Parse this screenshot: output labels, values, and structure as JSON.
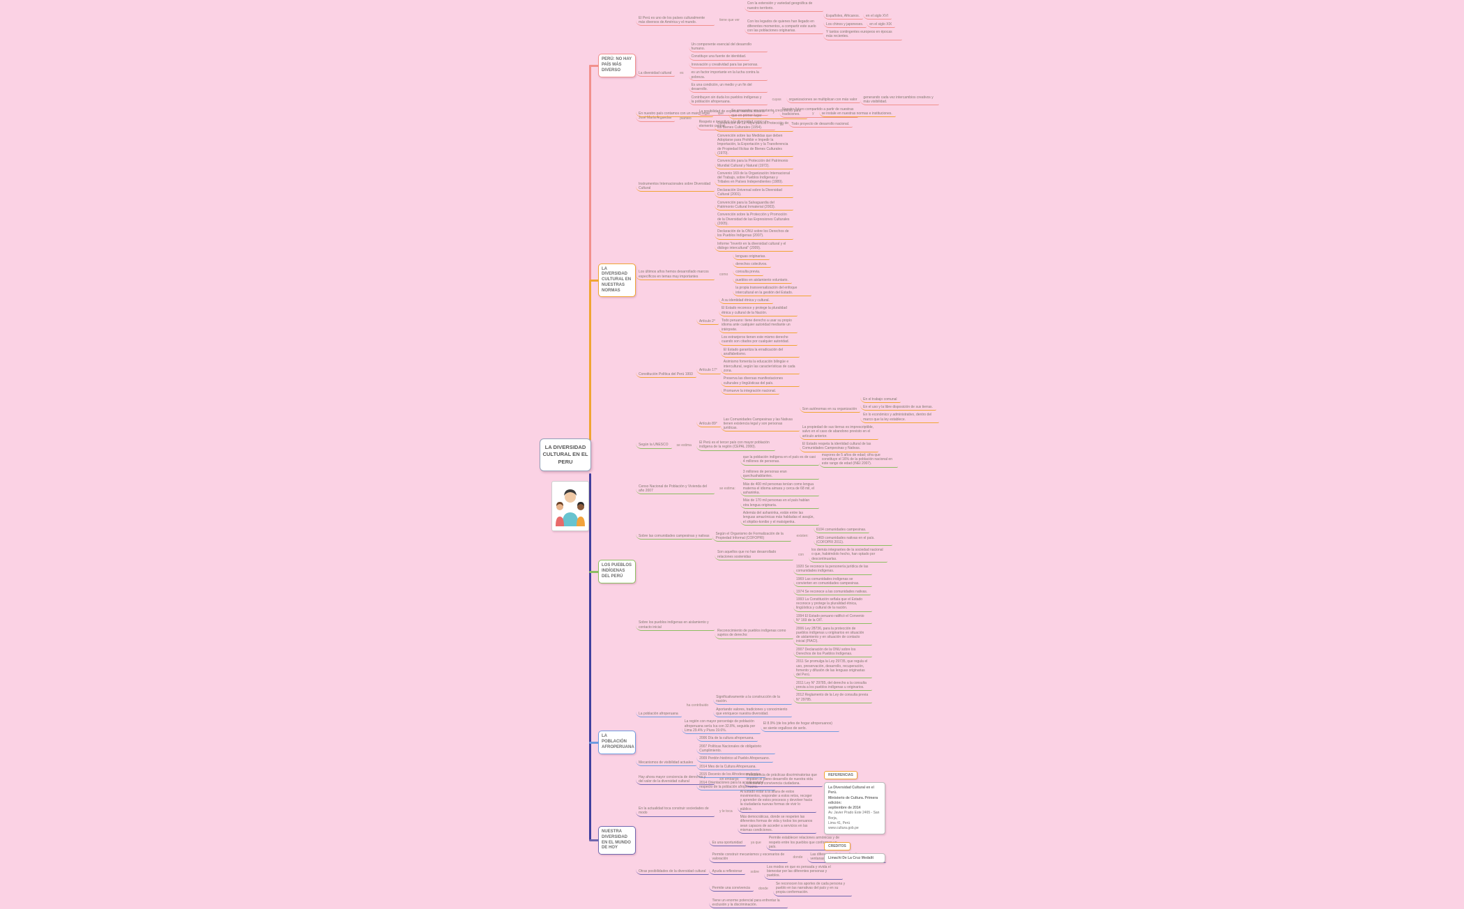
{
  "root": {
    "label": "LA DIVERSIDAD CULTURAL EN EL PERU"
  },
  "palette": {
    "background": "#FBD2E4",
    "salmon": "#F1908C",
    "orange": "#F0A532",
    "green": "#8CBE60",
    "blue": "#6E9BE0",
    "purple": "#6F66AE",
    "trunk_lower": "#3F3F9E"
  },
  "branches": [
    {
      "label": "PERÚ: NO HAY PAÍS MÁS DIVERSO",
      "color": "#F1908C",
      "children": [
        {
          "t": "El Perú es uno de los países culturalmente más diversos de América y el mundo.",
          "c": [
            {
              "t": "tiene que ver",
              "p": true,
              "c": [
                {
                  "t": "Con la extensión y variedad geográfica de nuestro territorio."
                },
                {
                  "t": "Con los legados de quienes han llegado en diferentes momentos, a compartir este suelo con las poblaciones originarias.",
                  "c": [
                    {
                      "t": "Españoles, Africanos.",
                      "c": [
                        {
                          "t": "en el siglo XVI"
                        }
                      ]
                    },
                    {
                      "t": "Los chinos y japoneses.",
                      "c": [
                        {
                          "t": "en el siglo XIX"
                        }
                      ]
                    },
                    {
                      "t": "Y tantos contingentes europeos en épocas más recientes."
                    }
                  ]
                }
              ]
            }
          ]
        },
        {
          "t": "La diversidad cultural",
          "c": [
            {
              "t": "es",
              "p": true,
              "c": [
                {
                  "t": "Un componente esencial del desarrollo humano."
                },
                {
                  "t": "Constituye una fuente de identidad."
                },
                {
                  "t": "Innovación y creatividad para las personas."
                },
                {
                  "t": "es un factor importante en la lucha contra la pobreza."
                },
                {
                  "t": "Es una condición, un medio y un fin del desarrollo."
                },
                {
                  "t": "Contribuyen sin duda los pueblos indígenas y la población afroperuana.",
                  "c": [
                    {
                      "t": "cuyas",
                      "p": true,
                      "c": [
                        {
                          "t": "organizaciones se multiplican con más valor",
                          "c": [
                            {
                              "t": "generando cada vez intercambios creativos y más visibilidad."
                            }
                          ]
                        }
                      ]
                    }
                  ]
                }
              ]
            }
          ]
        },
        {
          "t": "José María Arguedas",
          "c": [
            {
              "t": "planteó",
              "p": true,
              "c": [
                {
                  "t": "La posibilidad de expresar nuestra historia",
                  "c": [
                    {
                      "t": "y",
                      "p": true,
                      "c": [
                        {
                          "t": "Nuestro futuro compartido a partir de nuestras tradiciones."
                        }
                      ]
                    }
                  ]
                },
                {
                  "t": "Respeto e incentivo a la diversidad como un elemento central",
                  "c": [
                    {
                      "t": "de",
                      "p": true,
                      "c": [
                        {
                          "t": "Todo proyecto de desarrollo nacional."
                        }
                      ]
                    }
                  ]
                }
              ]
            }
          ]
        }
      ]
    },
    {
      "label": "LA DIVERSIDAD CULTURAL EN NUESTRAS NORMAS",
      "color": "#F0A532",
      "children": [
        {
          "t": "En nuestro país contamos con un marco legal",
          "c": [
            {
              "t": "que",
              "p": true,
              "c": [
                {
                  "t": "Se encuentra: en constante crecimiento para que en primer lugar",
                  "c": [
                    {
                      "t": "y",
                      "p": true,
                      "c": [
                        {
                          "t": "se instale en nuestras normas e instituciones."
                        }
                      ]
                    }
                  ]
                }
              ]
            }
          ]
        },
        {
          "t": "Instrumentos Internacionales sobre Diversidad Cultural",
          "c": [
            {
              "t": "Convención de La Haya para la Protección de los Bienes Culturales (1954)."
            },
            {
              "t": "Convención sobre las Medidas que deben Adoptarse para Prohibir e Impedir la Importación, la Exportación y la Transferencia de Propiedad Ilícitas de Bienes Culturales (1970)."
            },
            {
              "t": "Convención para la Protección del Patrimonio Mundial Cultural y Natural (1972)."
            },
            {
              "t": "Convenio 169 de la Organización Internacional del Trabajo, sobre Pueblos Indígenas y Tribales en Países Independientes (1989)."
            },
            {
              "t": "Declaración Universal sobre la Diversidad Cultural (2001)."
            },
            {
              "t": "Convención para la Salvaguardia del Patrimonio Cultural Inmaterial (2003)."
            },
            {
              "t": "Convención sobre la Protección y Promoción de la Diversidad de las Expresiones Culturales (2005)."
            },
            {
              "t": "Declaración de la ONU sobre los Derechos de los Pueblos Indígenas (2007)."
            },
            {
              "t": "Informe “Invertir en la diversidad cultural y el diálogo intercultural” (2009)."
            }
          ]
        },
        {
          "t": "Los últimos años hemos desarrollado marcos específicos en temas muy importantes",
          "c": [
            {
              "t": "como",
              "p": true,
              "c": [
                {
                  "t": "lenguas originarias."
                },
                {
                  "t": "derechos colectivos."
                },
                {
                  "t": "consulta previa."
                },
                {
                  "t": "pueblos en aislamiento voluntario."
                },
                {
                  "t": "la propia transversalización del enfoque intercultural en la gestión del Estado."
                }
              ]
            }
          ]
        },
        {
          "t": "Constitución Política del Perú 1993",
          "c": [
            {
              "t": "Artículo 2°",
              "c": [
                {
                  "t": "A su identidad étnica y cultural."
                },
                {
                  "t": "El Estado reconoce y protege la pluralidad étnica y cultural de la Nación."
                },
                {
                  "t": "Todo peruano: tiene derecho a usar su propio idioma ante cualquier autoridad mediante un intérprete."
                },
                {
                  "t": "Los extranjeros tienen este mismo derecho cuando son citados por cualquier autoridad."
                }
              ]
            },
            {
              "t": "Artículo 17°",
              "c": [
                {
                  "t": "El Estado garantiza la erradicación del analfabetismo."
                },
                {
                  "t": "Asimismo fomenta la educación bilingüe e intercultural, según las características de cada zona."
                },
                {
                  "t": "Preserva las diversas manifestaciones culturales y lingüísticas del país."
                },
                {
                  "t": "Promueve la integración nacional."
                }
              ]
            },
            {
              "t": "Artículo 89°",
              "c": [
                {
                  "t": "Las Comunidades Campesinas y las Nativas tienen existencia legal y son personas jurídicas.",
                  "c": [
                    {
                      "t": "Son autónomas en su organización",
                      "c": [
                        {
                          "t": "En el trabajo comunal"
                        },
                        {
                          "t": "En el uso y la libre disposición de sus tierras."
                        },
                        {
                          "t": "En lo económico y administrativo, dentro del marco que la ley establece."
                        }
                      ]
                    },
                    {
                      "t": "La propiedad de sus tierras es imprescriptible, salvo en el caso de abandono previsto en el artículo anterior."
                    },
                    {
                      "t": "El Estado respeta la identidad cultural de las Comunidades Campesinas y Nativas."
                    }
                  ]
                }
              ]
            }
          ]
        }
      ]
    },
    {
      "label": "LOS PUEBLOS INDÍGENAS DEL PERÚ",
      "color": "#8CBE60",
      "children": [
        {
          "t": "Según la UNESCO",
          "c": [
            {
              "t": "se estima",
              "p": true,
              "c": [
                {
                  "t": "El Perú es el tercer país con mayor población indígena de la región (CEPAL 2000)."
                }
              ]
            }
          ]
        },
        {
          "t": "Censo Nacional de Población y Vivienda del año 2007",
          "c": [
            {
              "t": "se estima:",
              "p": true,
              "c": [
                {
                  "t": "que la población indígena en el país es de casi 4 millones de personas.",
                  "c": [
                    {
                      "t": "mayores de 5 años de edad; cifra que constituye el 16% de la población nacional en este rango de edad (INEI 2007)."
                    }
                  ]
                },
                {
                  "t": "3 millones de personas eran quechuahablantes."
                },
                {
                  "t": "Más de 400 mil personas tenían como lengua materna el idioma aimara y cerca de 68 mil, el ashaninka."
                },
                {
                  "t": "Más de 170 mil personas en el país hablan otra lengua originaria."
                },
                {
                  "t": "Además del ashaninka, están entre las lenguas amazónicas más habladas el awajún, el shipibo-konibo y el matsigenka."
                }
              ]
            }
          ]
        },
        {
          "t": "Sobre las comunidades campesinas y nativas",
          "c": [
            {
              "t": "Según el Organismo de Formalización de la Propiedad Informal (COFOPRI)",
              "c": [
                {
                  "t": "existen:",
                  "p": true,
                  "c": [
                    {
                      "t": "6104 comunidades campesinas."
                    },
                    {
                      "t": "1469 comunidades nativas en el país. (COFOPRI 2011)."
                    }
                  ]
                }
              ]
            }
          ]
        },
        {
          "t": "Sobre los pueblos indígenas en aislamiento y contacto inicial",
          "c": [
            {
              "t": "Son aquellos que no han desarrollado relaciones sostenidas",
              "c": [
                {
                  "t": "con",
                  "p": true,
                  "c": [
                    {
                      "t": "los demás integrantes de la sociedad nacional o que, habiéndolo hecho, han optado por descontinuarlas."
                    }
                  ]
                }
              ]
            },
            {
              "t": "Reconocimiento de pueblos indígenas como sujetos de derecho:",
              "c": [
                {
                  "t": "1920 Se reconoce la personería jurídica de las comunidades indígenas."
                },
                {
                  "t": "1969 Las comunidades indígenas se convierten en comunidades campesinas."
                },
                {
                  "t": "1974 Se reconoce a las comunidades nativas."
                },
                {
                  "t": "1993 La Constitución señala que el Estado reconoce y protege la pluralidad étnica, lingüística y cultural de la nación."
                },
                {
                  "t": "1994 El Estado peruano ratificó el Convenio N° 169 de la OIT."
                },
                {
                  "t": "2006 Ley 28736, para la protección de pueblos indígenas u originarios en situación de aislamiento y en situación de contacto inicial (PIACI)."
                },
                {
                  "t": "2007 Declaración de la ONU sobre los Derechos de los Pueblos Indígenas."
                },
                {
                  "t": "2011 Se promulga la Ley 29735, que regula el uso, preservación, desarrollo, recuperación, fomento y difusión de las lenguas originarias del Perú."
                },
                {
                  "t": "2011 Ley N° 29785, del derecho a la consulta previa a los pueblos indígenas u originarios."
                },
                {
                  "t": "2012 Reglamento de la Ley de consulta previa N° 29785."
                }
              ]
            }
          ]
        }
      ]
    },
    {
      "label": "LA POBLACIÓN AFROPERUANA",
      "color": "#6E9BE0",
      "children": [
        {
          "t": "La población afroperuana",
          "c": [
            {
              "t": "ha contribuido",
              "p": true,
              "c": [
                {
                  "t": "Significativamente a la construcción de la nación."
                },
                {
                  "t": "Aportando valores, tradiciones y conocimiento que enriquece nuestra diversidad."
                }
              ]
            },
            {
              "t": "La región con mayor porcentaje de población afroperuana sería Ica con 32.8%, seguida por Lima 29.4% y Piura 19.6%.",
              "c": [
                {
                  "t": "El 8.9% (de los jefes de hogar afroperuanos) se siente orgulloso de serlo."
                }
              ]
            }
          ]
        },
        {
          "t": "Mecanismos de visibilidad actuales",
          "c": [
            {
              "t": "2006 Día de la cultura afroperuana."
            },
            {
              "t": "2007 Políticas Nacionales de obligatorio Cumplimiento."
            },
            {
              "t": "2009 Perdón histórico al Pueblo Afroperuano."
            },
            {
              "t": "2014 Mes de la Cultura Afroperuana."
            },
            {
              "t": "2015 Decenio de los Afrodescendientes."
            },
            {
              "t": "2014 Orientaciones para la acción estatal respecto de la población afroperuana."
            }
          ]
        }
      ]
    },
    {
      "label": "NUESTRA DIVERSIDAD EN EL MUNDO DE HOY",
      "color": "#6F66AE",
      "children": [
        {
          "t": "Hay ahora mayor conciencia de derechos y del valor de la diversidad cultural",
          "c": [
            {
              "t": "sin embargo",
              "p": true,
              "c": [
                {
                  "t": "Persistencia de prácticas discriminatorias que impiden el pleno desarrollo de nuestra vida cotidiana y convivencia ciudadana."
                }
              ]
            }
          ]
        },
        {
          "t": "En la actualidad toca construir sociedades de modo",
          "c": [
            {
              "t": "y le toca",
              "p": true,
              "c": [
                {
                  "t": "Al Estado estar a la altura de estos movimientos, responder a estos retos, recoger y aprender de estos procesos y devolver hacia la ciudadanía nuevas formas de vivir lo público."
                },
                {
                  "t": "Más democráticas, donde se respeten las diferentes formas de vida y todos los peruanos sean capaces de acceder a servicios en las mismas condiciones."
                }
              ]
            }
          ]
        },
        {
          "t": "Otras posibilidades de la diversidad cultural",
          "c": [
            {
              "t": "Es una oportunidad",
              "c": [
                {
                  "t": "ya que",
                  "p": true,
                  "c": [
                    {
                      "t": "Permite establecer relaciones armónicas y de respeto entre los pueblos que conforman un país."
                    }
                  ]
                }
              ]
            },
            {
              "t": "Permite construir mecanismos y escenarios de valoración",
              "c": [
                {
                  "t": "donde",
                  "p": true,
                  "c": [
                    {
                      "t": "Las diferencias étnico-culturales sean ventanas de oportunidad."
                    }
                  ]
                }
              ]
            },
            {
              "t": "Ayuda a reflexionar",
              "c": [
                {
                  "t": "sobre",
                  "p": true,
                  "c": [
                    {
                      "t": "Los modos en que es pensada y vivida el bienestar por las diferentes personas y pueblos."
                    }
                  ]
                }
              ]
            },
            {
              "t": "Permite una convivencia",
              "c": [
                {
                  "t": "donde",
                  "p": true,
                  "c": [
                    {
                      "t": "Se reconocen los aportes de cada persona y pueblo en las narrativas del país y en su propia conformación."
                    }
                  ]
                }
              ]
            },
            {
              "t": "Tiene un enorme potencial para enfrentar la exclusión y la discriminación."
            }
          ]
        }
      ]
    }
  ],
  "references": {
    "title": "REFERENCIAS",
    "lines": [
      "La Diversidad Cultural en el Perú.",
      "Ministerio de Cultura. Primera edición:",
      "septiembre de 2014",
      "Av. Javier Prado Este 2465 - San Borja,",
      "Lima 41, Perú",
      "www.cultura.gob.pe"
    ],
    "credits_title": "CREDITOS",
    "credits_name": "Limachi De La Cruz Medalit"
  }
}
